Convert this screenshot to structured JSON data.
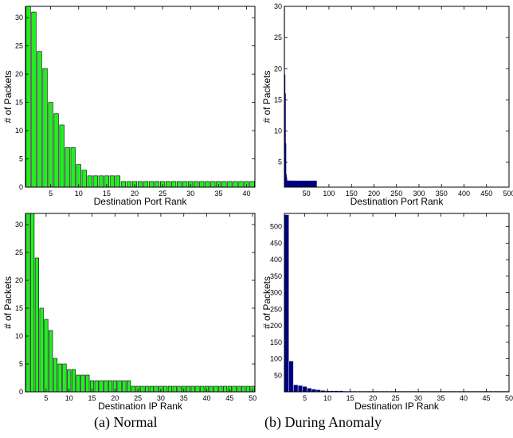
{
  "captions": {
    "a": "(a) Normal",
    "b": "(b) During Anomaly"
  },
  "chart_data": [
    {
      "id": "port-normal",
      "type": "bar",
      "xlabel": "Destination Port Rank",
      "ylabel": "# of Packets",
      "xlim": [
        0.5,
        41.5
      ],
      "ylim": [
        0,
        32
      ],
      "xticks": [
        5,
        10,
        15,
        20,
        25,
        30,
        35,
        40
      ],
      "yticks": [
        0,
        5,
        10,
        15,
        20,
        25,
        30
      ],
      "bar_color": "#22ee22",
      "edge_color": "#000000",
      "x": [
        1,
        2,
        3,
        4,
        5,
        6,
        7,
        8,
        9,
        10,
        11,
        12,
        13,
        14,
        15,
        16,
        17,
        18,
        19,
        20,
        21,
        22,
        23,
        24,
        25,
        26,
        27,
        28,
        29,
        30,
        31,
        32,
        33,
        34,
        35,
        36,
        37,
        38,
        39,
        40,
        41
      ],
      "values": [
        33,
        31,
        24,
        21,
        15,
        13,
        11,
        7,
        7,
        4,
        3,
        2,
        2,
        2,
        2,
        2,
        2,
        1,
        1,
        1,
        1,
        1,
        1,
        1,
        1,
        1,
        1,
        1,
        1,
        1,
        1,
        1,
        1,
        1,
        1,
        1,
        1,
        1,
        1,
        1,
        1
      ]
    },
    {
      "id": "port-anomaly",
      "type": "bar",
      "xlabel": "Destination Port Rank",
      "ylabel": "# of Packets",
      "xlim": [
        1,
        500
      ],
      "ylim": [
        1,
        30
      ],
      "xticks": [
        50,
        100,
        150,
        200,
        250,
        300,
        350,
        400,
        450,
        500
      ],
      "yticks": [
        5,
        10,
        15,
        20,
        25,
        30
      ],
      "bar_color": "#000080",
      "edge_color": "#000080",
      "x": [
        1,
        2,
        3,
        4,
        5,
        6,
        7,
        8,
        9,
        10,
        11,
        12,
        13,
        14,
        15,
        16,
        17,
        18,
        19,
        20,
        30,
        40,
        50,
        60,
        70,
        75,
        100,
        200,
        300,
        400,
        500
      ],
      "values": [
        30,
        19,
        16,
        8,
        3,
        2.5,
        2,
        2,
        2,
        2,
        2,
        2,
        2,
        2,
        2,
        2,
        2,
        2,
        2,
        2,
        2,
        2,
        2,
        2,
        2,
        1,
        1,
        1,
        1,
        1,
        1
      ]
    },
    {
      "id": "ip-normal",
      "type": "bar",
      "xlabel": "Destination IP Rank",
      "ylabel": "# of Packets",
      "xlim": [
        0.5,
        50.5
      ],
      "ylim": [
        0,
        32
      ],
      "xticks": [
        5,
        10,
        15,
        20,
        25,
        30,
        35,
        40,
        45,
        50
      ],
      "yticks": [
        0,
        5,
        10,
        15,
        20,
        25,
        30
      ],
      "bar_color": "#22ee22",
      "edge_color": "#000000",
      "x": [
        1,
        2,
        3,
        4,
        5,
        6,
        7,
        8,
        9,
        10,
        11,
        12,
        13,
        14,
        15,
        16,
        17,
        18,
        19,
        20,
        21,
        22,
        23,
        24,
        25,
        26,
        27,
        28,
        29,
        30,
        31,
        32,
        33,
        34,
        35,
        36,
        37,
        38,
        39,
        40,
        41,
        42,
        43,
        44,
        45,
        46,
        47,
        48,
        49,
        50
      ],
      "values": [
        33,
        33,
        24,
        15,
        13,
        11,
        6,
        5,
        5,
        4,
        4,
        3,
        3,
        3,
        2,
        2,
        2,
        2,
        2,
        2,
        2,
        2,
        2,
        1,
        1,
        1,
        1,
        1,
        1,
        1,
        1,
        1,
        1,
        1,
        1,
        1,
        1,
        1,
        1,
        1,
        1,
        1,
        1,
        1,
        1,
        1,
        1,
        1,
        1,
        1
      ]
    },
    {
      "id": "ip-anomaly",
      "type": "bar",
      "xlabel": "Destination IP Rank",
      "ylabel": "# of Packets",
      "xlim": [
        0.5,
        50
      ],
      "ylim": [
        0,
        540
      ],
      "xticks": [
        5,
        10,
        15,
        20,
        25,
        30,
        35,
        40,
        45,
        50
      ],
      "yticks": [
        50,
        100,
        150,
        200,
        250,
        300,
        350,
        400,
        450,
        500
      ],
      "bar_color": "#000080",
      "edge_color": "#000080",
      "x": [
        1,
        2,
        3,
        4,
        5,
        6,
        7,
        8,
        9,
        10,
        11,
        12,
        13,
        14,
        15,
        16,
        17,
        18,
        19,
        20,
        21,
        22,
        23,
        24,
        25,
        26,
        27,
        28,
        29,
        30,
        31,
        32,
        33,
        34,
        35,
        36,
        37,
        38,
        39,
        40,
        41,
        42,
        43,
        44,
        45,
        46,
        47,
        48,
        49,
        50
      ],
      "values": [
        535,
        92,
        20,
        18,
        15,
        10,
        7,
        5,
        3,
        2,
        2,
        2,
        2,
        1,
        1,
        1,
        1,
        1,
        1,
        1,
        1,
        1,
        1,
        1,
        1,
        1,
        1,
        1,
        1,
        1,
        1,
        1,
        1,
        1,
        1,
        1,
        1,
        1,
        1,
        1,
        1,
        1,
        1,
        1,
        1,
        1,
        1,
        1,
        1,
        1
      ]
    }
  ]
}
